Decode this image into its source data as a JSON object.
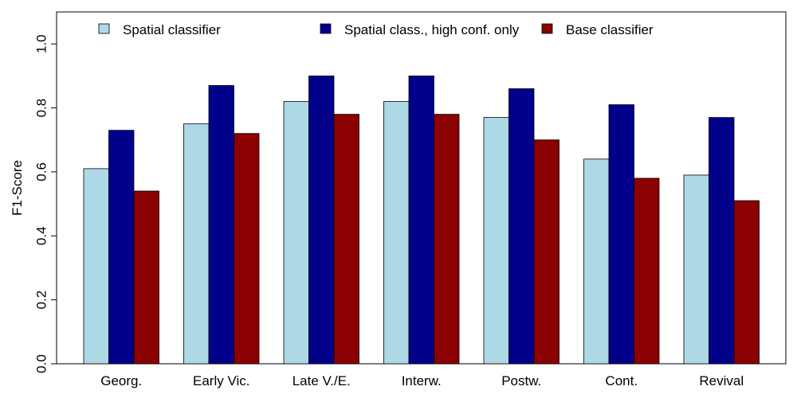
{
  "chart_data": {
    "type": "bar",
    "title": "",
    "xlabel": "",
    "ylabel": "F1-Score",
    "ylim": [
      0,
      1.1
    ],
    "yticks": [
      "0.0",
      "0.2",
      "0.4",
      "0.6",
      "0.8",
      "1.0"
    ],
    "ytick_values": [
      0,
      0.2,
      0.4,
      0.6,
      0.8,
      1.0
    ],
    "grid": false,
    "legend_position": "top",
    "categories": [
      "Georg.",
      "Early Vic.",
      "Late V./E.",
      "Interw.",
      "Postw.",
      "Cont.",
      "Revival"
    ],
    "series": [
      {
        "name": "Spatial classifier",
        "color": "#add8e6",
        "values": [
          0.61,
          0.75,
          0.82,
          0.82,
          0.77,
          0.64,
          0.59
        ]
      },
      {
        "name": "Spatial class., high conf. only",
        "color": "#00008b",
        "values": [
          0.73,
          0.87,
          0.9,
          0.9,
          0.86,
          0.81,
          0.77
        ]
      },
      {
        "name": "Base classifier",
        "color": "#8b0000",
        "values": [
          0.54,
          0.72,
          0.78,
          0.78,
          0.7,
          0.58,
          0.51
        ]
      }
    ]
  }
}
